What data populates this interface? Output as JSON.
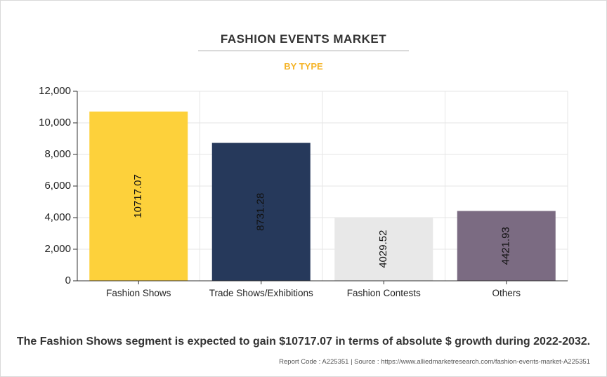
{
  "title": "FASHION EVENTS MARKET",
  "subtitle": "BY TYPE",
  "footnote": "The Fashion Shows segment is expected to gain $10717.07 in terms of absolute $ growth during 2022-2032.",
  "source": "Report Code : A225351  |  Source : https://www.alliedmarketresearch.com/fashion-events-market-A225351",
  "chart_data": {
    "type": "bar",
    "categories": [
      "Fashion Shows",
      "Trade Shows/Exhibitions",
      "Fashion Contests",
      "Others"
    ],
    "values": [
      10717.07,
      8731.28,
      4029.52,
      4421.93
    ],
    "value_labels": [
      "10717.07",
      "8731.28",
      "4029.52",
      "4421.93"
    ],
    "colors": [
      "#fdd13b",
      "#26395b",
      "#e8e8e8",
      "#7b6b82"
    ],
    "ylim": [
      0,
      12000
    ],
    "yticks": [
      0,
      2000,
      4000,
      6000,
      8000,
      10000,
      12000
    ],
    "ytick_labels": [
      "0",
      "2,000",
      "4,000",
      "6,000",
      "8,000",
      "10,000",
      "12,000"
    ],
    "grid": true,
    "legend": "none",
    "xlabel": "",
    "ylabel": ""
  }
}
